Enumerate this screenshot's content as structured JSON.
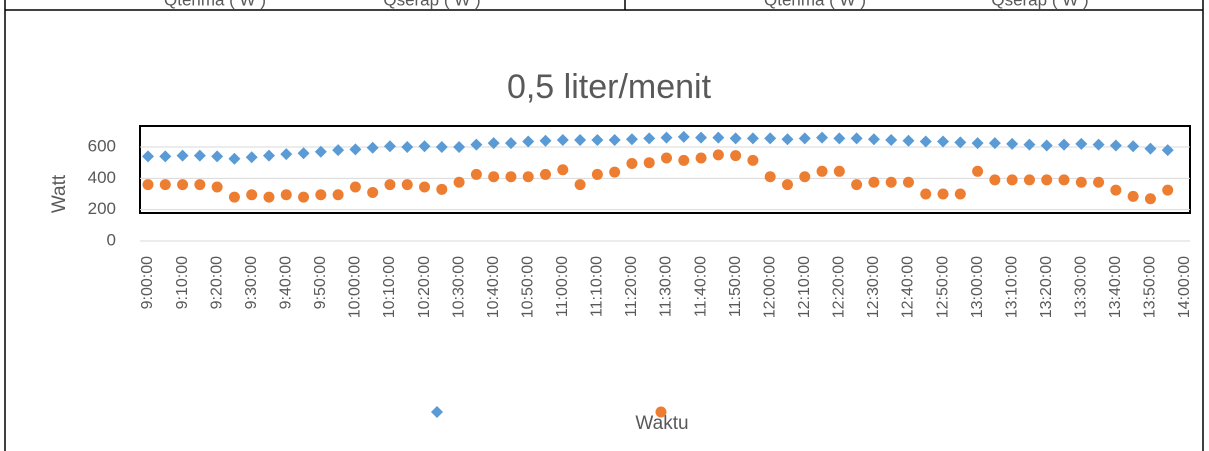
{
  "header_cells": [
    "Qterima ( W )",
    "Qserap ( W )",
    "Qterima ( W )",
    "Qserap ( W )"
  ],
  "chart_data": {
    "type": "scatter",
    "title": "0,5 liter/menit",
    "y_label": "Watt",
    "x_label": "Waktu",
    "categories": [
      "9:00:00",
      null,
      "9:10:00",
      null,
      "9:20:00",
      null,
      "9:30:00",
      null,
      "9:40:00",
      null,
      "9:50:00",
      null,
      "10:00:00",
      null,
      "10:10:00",
      null,
      "10:20:00",
      null,
      "10:30:00",
      null,
      "10:40:00",
      null,
      "10:50:00",
      null,
      "11:00:00",
      null,
      "11:10:00",
      null,
      "11:20:00",
      null,
      "11:30:00",
      null,
      "11:40:00",
      null,
      "11:50:00",
      null,
      "12:00:00",
      null,
      "12:10:00",
      null,
      "12:20:00",
      null,
      "12:30:00",
      null,
      "12:40:00",
      null,
      "12:50:00",
      null,
      "13:00:00",
      null,
      "13:10:00",
      null,
      "13:20:00",
      null,
      "13:30:00",
      null,
      "13:40:00",
      null,
      "13:50:00",
      null,
      "14:00:00"
    ],
    "series": [
      {
        "color": "#5b9bd5",
        "marker": "diamond",
        "values": [
          540,
          540,
          545,
          545,
          540,
          525,
          535,
          545,
          555,
          560,
          570,
          580,
          585,
          595,
          605,
          600,
          605,
          600,
          600,
          615,
          625,
          625,
          635,
          640,
          645,
          645,
          645,
          645,
          650,
          655,
          660,
          665,
          660,
          660,
          655,
          655,
          655,
          650,
          655,
          660,
          655,
          655,
          650,
          645,
          640,
          635,
          635,
          630,
          625,
          625,
          620,
          615,
          610,
          615,
          620,
          615,
          610,
          605,
          590,
          580,
          null
        ]
      },
      {
        "color": "#ed7d31",
        "marker": "circle",
        "values": [
          360,
          360,
          360,
          360,
          345,
          280,
          295,
          280,
          295,
          280,
          295,
          295,
          345,
          310,
          360,
          360,
          345,
          330,
          375,
          425,
          410,
          410,
          410,
          425,
          455,
          360,
          425,
          440,
          495,
          500,
          530,
          515,
          530,
          550,
          545,
          515,
          410,
          360,
          410,
          445,
          445,
          360,
          375,
          375,
          375,
          300,
          300,
          300,
          445,
          390,
          390,
          390,
          390,
          390,
          375,
          375,
          325,
          285,
          270,
          325,
          null
        ]
      }
    ],
    "ylim": [
      0,
      800
    ],
    "yticks": [
      0,
      200,
      400,
      600
    ],
    "grid": true
  }
}
